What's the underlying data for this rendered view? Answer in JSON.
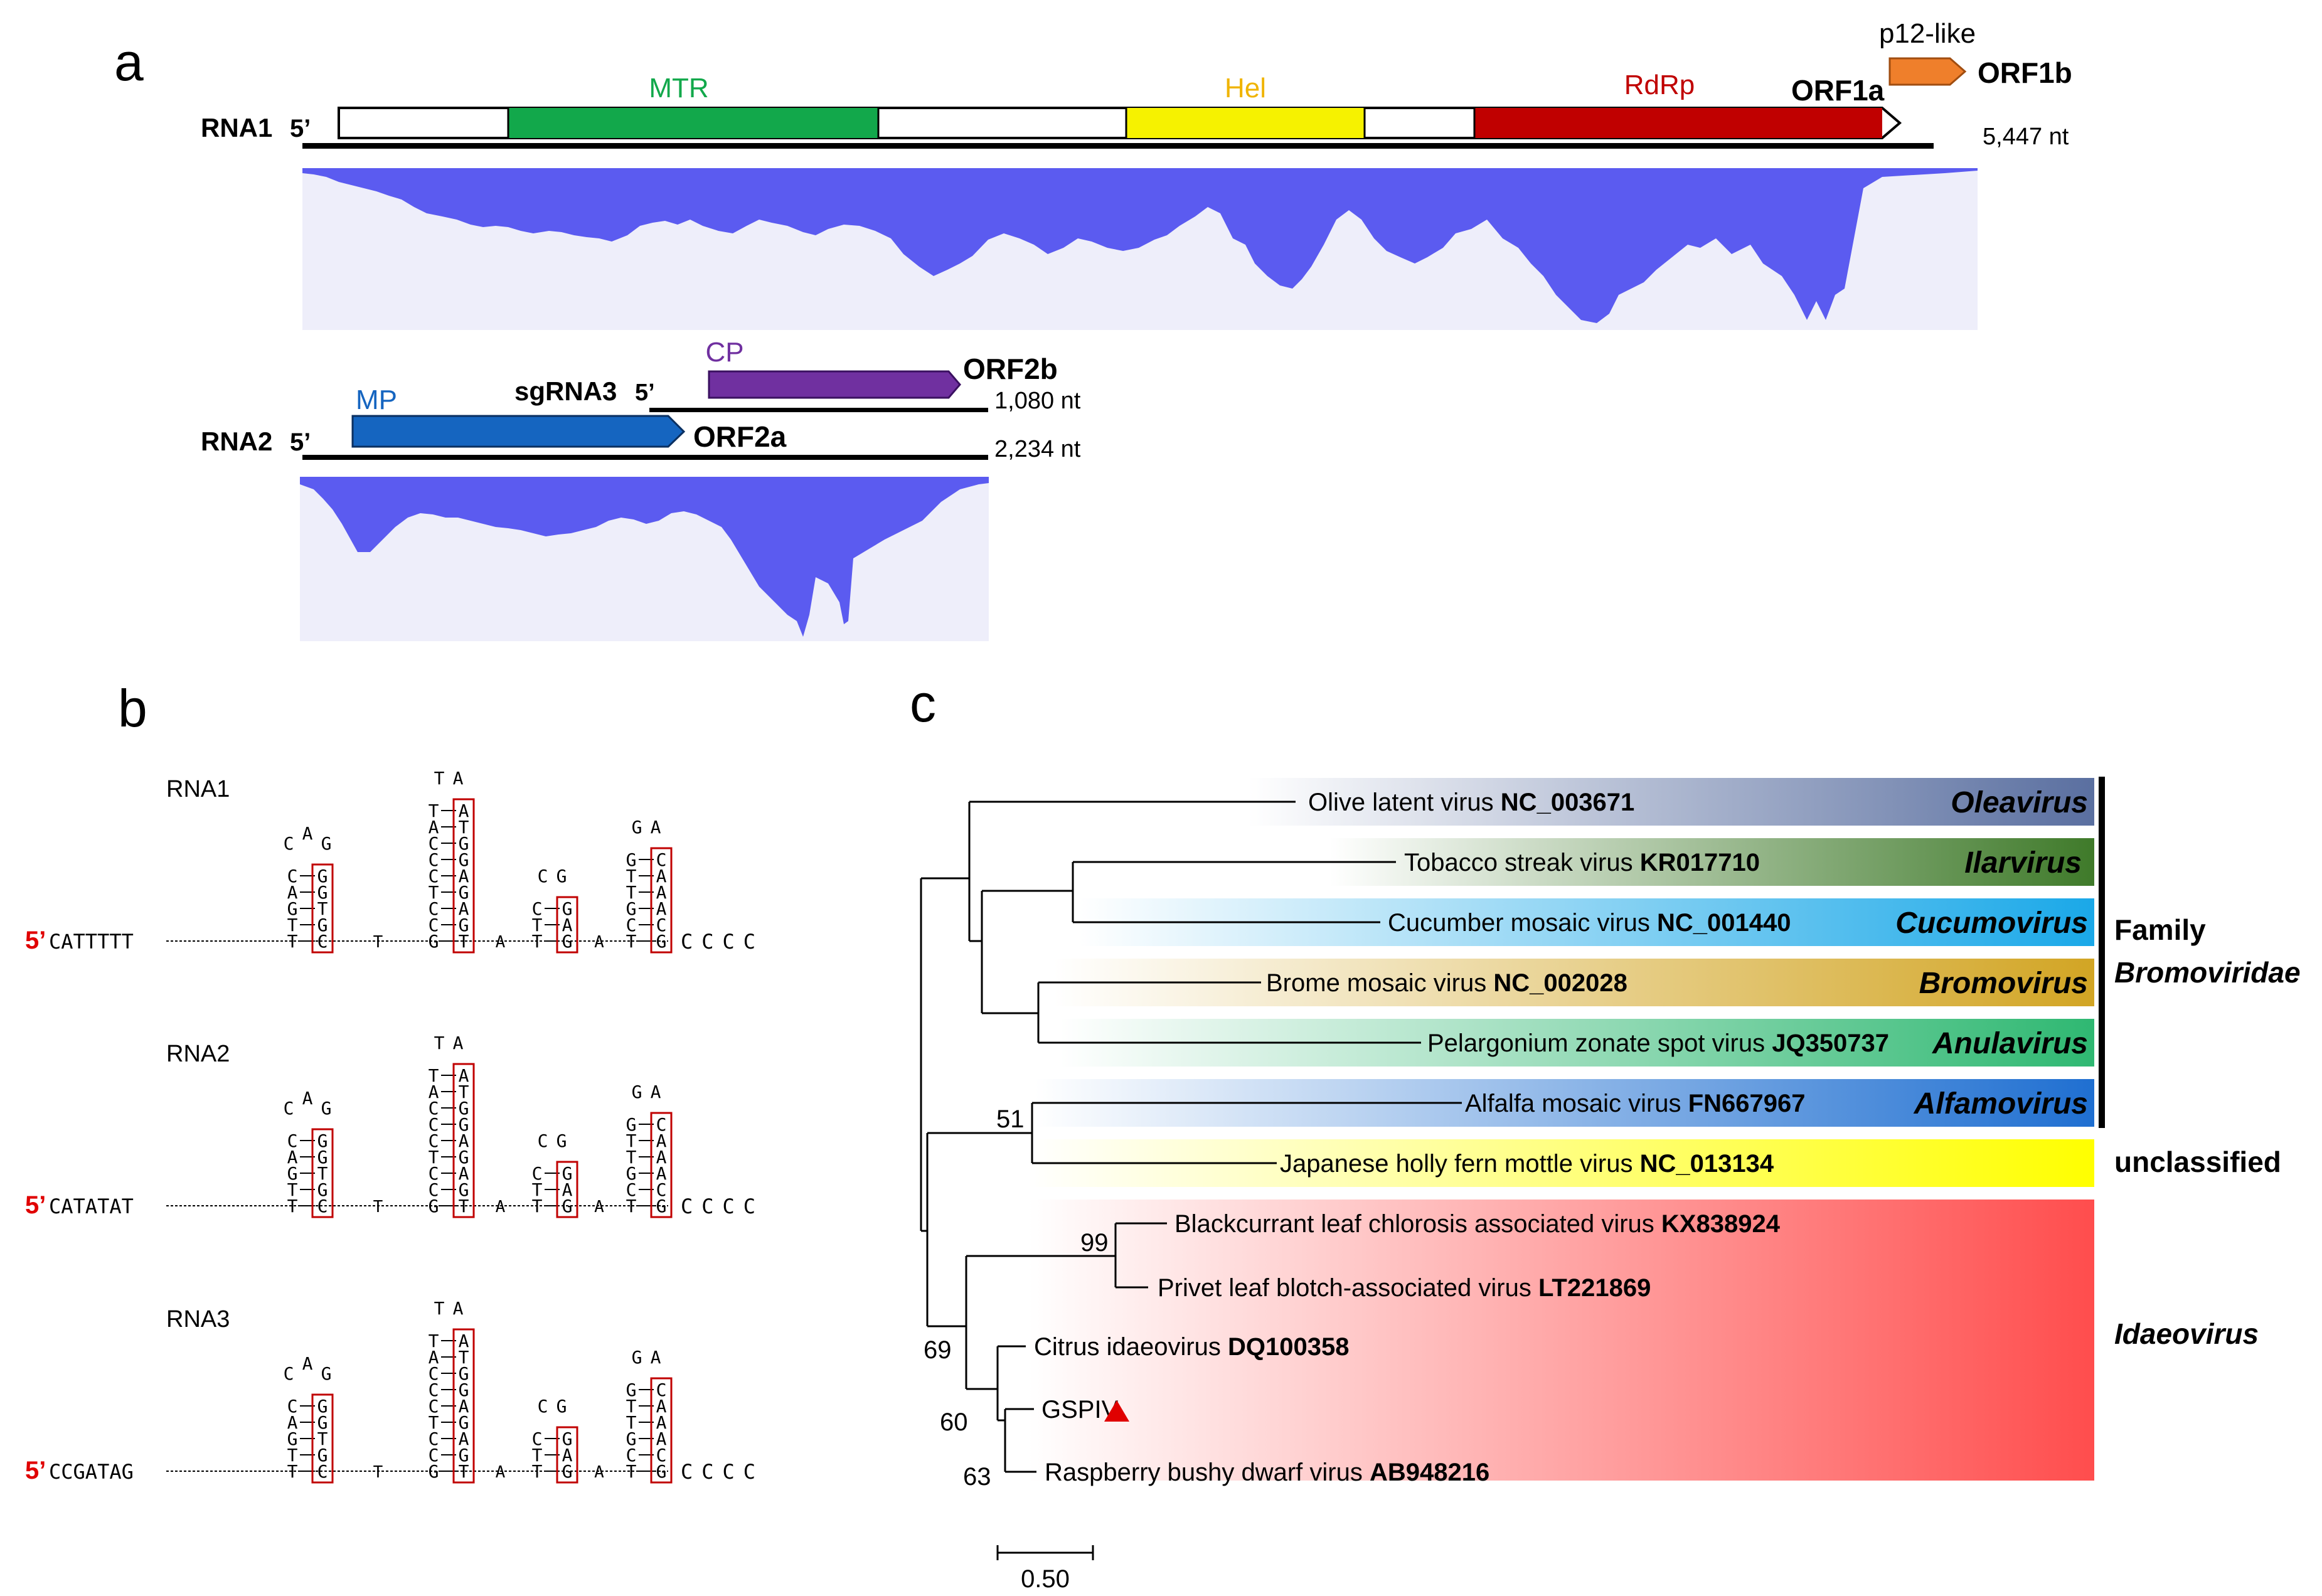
{
  "panel_labels": {
    "a": "a",
    "b": "b",
    "c": "c"
  },
  "colors": {
    "mtr": "#12a84b",
    "hel": "#f6f200",
    "rdrp": "#c00000",
    "p12": "#ef7f2b",
    "mp": "#1565c0",
    "cp": "#7030a0",
    "coverage": "#5b5bf0",
    "coverage_bg": "#eeeefa",
    "highlight_box": "#c00000",
    "five_prime": "#e00000"
  },
  "panel_a": {
    "rna1": {
      "label": "RNA1",
      "end5": "5’",
      "length": "5,447 nt"
    },
    "rna2": {
      "label": "RNA2",
      "end5": "5’",
      "length": "2,234 nt"
    },
    "sgrna3": {
      "label": "sgRNA3",
      "end5": "5’",
      "length": "1,080 nt"
    },
    "domains": {
      "mtr": "MTR",
      "hel": "Hel",
      "rdrp": "RdRp",
      "mp": "MP",
      "cp": "CP",
      "p12": "p12-like"
    },
    "orfs": {
      "orf1a": "ORF1a",
      "orf1b": "ORF1b",
      "orf2a": "ORF2a",
      "orf2b": "ORF2b"
    }
  },
  "panel_b": {
    "five_prime": "5’",
    "rows": [
      {
        "label": "RNA1",
        "prefix": "CATTTTT",
        "tail": "CCCC"
      },
      {
        "label": "RNA2",
        "prefix": "CATATAT",
        "tail": "CCCC"
      },
      {
        "label": "RNA3",
        "prefix": "CCGATAG",
        "tail": "CCCC"
      }
    ]
  },
  "panel_c": {
    "taxa": [
      {
        "name": "Olive latent virus",
        "acc": "NC_003671"
      },
      {
        "name": "Tobacco streak virus",
        "acc": "KR017710"
      },
      {
        "name": "Cucumber mosaic virus",
        "acc": "NC_001440"
      },
      {
        "name": "Brome mosaic virus",
        "acc": "NC_002028"
      },
      {
        "name": "Pelargonium zonate spot virus",
        "acc": "JQ350737"
      },
      {
        "name": "Alfalfa mosaic virus",
        "acc": "FN667967"
      },
      {
        "name": "Japanese holly fern mottle virus",
        "acc": "NC_013134"
      },
      {
        "name": "Blackcurrant leaf chlorosis associated virus",
        "acc": "KX838924"
      },
      {
        "name": "Privet leaf blotch-associated virus",
        "acc": "LT221869"
      },
      {
        "name": "Citrus idaeovirus",
        "acc": "DQ100358"
      },
      {
        "name": "GSPIV",
        "acc": ""
      },
      {
        "name": "Raspberry bushy dwarf virus",
        "acc": "AB948216"
      }
    ],
    "genera": [
      "Oleavirus",
      "Ilarvirus",
      "Cucumovirus",
      "Bromovirus",
      "Anulavirus",
      "Alfamovirus"
    ],
    "bootstrap": {
      "b51": "51",
      "b99": "99",
      "b69": "69",
      "b60": "60",
      "b63": "63"
    },
    "groups": {
      "family_word": "Family",
      "family_name": "Bromoviridae",
      "unclassified": "unclassified",
      "idaeovirus": "Idaeovirus"
    },
    "scale_label": "0.50"
  }
}
